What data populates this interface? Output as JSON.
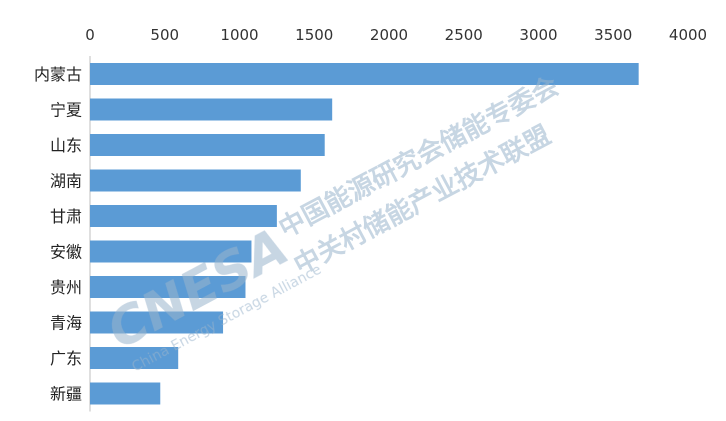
{
  "chart_data": {
    "type": "bar",
    "orientation": "horizontal",
    "categories": [
      "内蒙古",
      "宁夏",
      "山东",
      "湖南",
      "甘肃",
      "安徽",
      "贵州",
      "青海",
      "广东",
      "新疆"
    ],
    "values": [
      3670,
      1620,
      1570,
      1410,
      1250,
      1080,
      1040,
      890,
      590,
      470
    ],
    "xlim": [
      0,
      4000
    ],
    "ticks": [
      0,
      500,
      1000,
      1500,
      2000,
      2500,
      3000,
      3500,
      4000
    ],
    "tick_labels": [
      "0",
      "500",
      "1000",
      "1500",
      "2000",
      "2500",
      "3000",
      "3500",
      "4000"
    ],
    "axis_position": "top",
    "grid": false,
    "legend": "none",
    "bar_color": "#5b9bd5"
  },
  "watermark": {
    "logo": "CNESA",
    "line1": "中国能源研究会储能专委会",
    "line2": "中关村储能产业技术联盟",
    "subtitle": "China Energy Storage Alliance",
    "color": "#9ab4cc"
  }
}
